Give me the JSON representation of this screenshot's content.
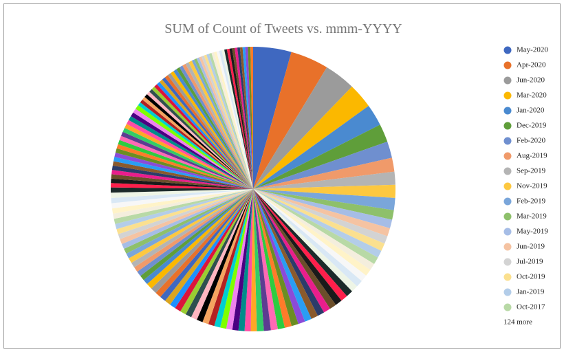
{
  "chart_data": {
    "type": "pie",
    "title": "SUM of Count of Tweets vs. mmm-YYYY",
    "categories": [
      "May-2020",
      "Apr-2020",
      "Jun-2020",
      "Mar-2020",
      "Jan-2020",
      "Dec-2019",
      "Feb-2020",
      "Aug-2019",
      "Sep-2019",
      "Nov-2019",
      "Feb-2019",
      "Mar-2019",
      "May-2019",
      "Jun-2019",
      "Jul-2019",
      "Oct-2019",
      "Jan-2019",
      "Oct-2017",
      null,
      null,
      null,
      null,
      null,
      null,
      null,
      null,
      null,
      null,
      null,
      null,
      null,
      null,
      null,
      null,
      null,
      null,
      null,
      null,
      null,
      null,
      null,
      null,
      null,
      null,
      null,
      null,
      null,
      null,
      null,
      null,
      null,
      null,
      null,
      null,
      null,
      null,
      null,
      null,
      null,
      null,
      null,
      null,
      null,
      null,
      null,
      null,
      null,
      null,
      null,
      null,
      null,
      null,
      null,
      null,
      null,
      null,
      null,
      null,
      null,
      null,
      null,
      null,
      null,
      null,
      null,
      null,
      null,
      null,
      null,
      null,
      null,
      null,
      null,
      null,
      null,
      null,
      null,
      null,
      null,
      null,
      null,
      null,
      null,
      null,
      null,
      null,
      null,
      null,
      null,
      null,
      null,
      null,
      null,
      null,
      null,
      null,
      null,
      null,
      null,
      null,
      null,
      null,
      null,
      null,
      null,
      null,
      null,
      null,
      null,
      null,
      null,
      null,
      null,
      null,
      null,
      null,
      null,
      null,
      null,
      null,
      null,
      null
    ],
    "values": [
      4.4,
      4.4,
      3.6,
      2.9,
      2.5,
      2.1,
      1.9,
      1.6,
      1.5,
      1.5,
      1.4,
      1.1,
      1.0,
      0.95,
      0.9,
      0.9,
      0.85,
      0.85,
      0.8,
      0.8,
      0.8,
      0.8,
      0.8,
      0.8,
      0.8,
      0.8,
      0.8,
      0.8,
      0.8,
      0.8,
      0.8,
      0.8,
      0.8,
      0.8,
      0.8,
      0.8,
      0.8,
      0.8,
      0.7,
      0.7,
      0.7,
      0.7,
      0.7,
      0.7,
      0.7,
      0.7,
      0.7,
      0.7,
      0.7,
      0.7,
      0.7,
      0.7,
      0.7,
      0.7,
      0.7,
      0.7,
      0.7,
      0.7,
      0.6,
      0.6,
      0.6,
      0.6,
      0.6,
      0.6,
      0.6,
      0.6,
      0.6,
      0.6,
      0.6,
      0.6,
      0.6,
      0.6,
      0.6,
      0.6,
      0.6,
      0.6,
      0.6,
      0.6,
      0.5,
      0.5,
      0.5,
      0.5,
      0.5,
      0.5,
      0.5,
      0.5,
      0.5,
      0.5,
      0.5,
      0.5,
      0.5,
      0.5,
      0.5,
      0.5,
      0.5,
      0.5,
      0.5,
      0.5,
      0.4,
      0.4,
      0.4,
      0.4,
      0.4,
      0.4,
      0.4,
      0.4,
      0.4,
      0.4,
      0.4,
      0.4,
      0.4,
      0.4,
      0.4,
      0.4,
      0.4,
      0.4,
      0.4,
      0.4,
      0.3,
      0.3,
      0.3,
      0.3,
      0.3,
      0.3,
      0.3,
      0.3,
      0.3,
      0.3,
      0.3,
      0.3,
      0.3,
      0.3,
      0.3,
      0.3,
      0.3,
      0.3,
      0.3,
      0.3,
      0.3,
      0.3,
      0.3,
      0.3
    ],
    "colors": [
      "#3f68c0",
      "#e8712a",
      "#9b9b9b",
      "#fbb800",
      "#4a8ad0",
      "#5f9e3a",
      "#6f8fcf",
      "#f09a6a",
      "#b4b4b4",
      "#fdc840",
      "#7aa6da",
      "#8ec06b",
      "#a6bde6",
      "#f5c3a2",
      "#d3d3d3",
      "#fbe08f",
      "#b3cde9",
      "#b8d9a6",
      "#f4eedd",
      "#fff3c8",
      "#f7f7f7",
      "#d9e8f5",
      "#eef5e6",
      "#1c2a2a",
      "#ff1f4b",
      "#1a1a1a",
      "#6b4e2a",
      "#e91e8c",
      "#2b3c6a",
      "#8a5a2d",
      "#2a9df4",
      "#8b4bd8",
      "#6b8e23",
      "#ff7b2a",
      "#2ecc40",
      "#ff69b4",
      "#5c3d91",
      "#33cc66",
      "#ffa726",
      "#ff4da6",
      "#008b8b",
      "#4b0082",
      "#ee82ee",
      "#7fff00",
      "#00ced1",
      "#b22222",
      "#f4a460",
      "#000000",
      "#ffb6c1",
      "#2f4f4f",
      "#9acd32",
      "#dc143c",
      "#1e90ff",
      "#daa520"
    ],
    "legend_more": "124 more",
    "legend": "right"
  }
}
